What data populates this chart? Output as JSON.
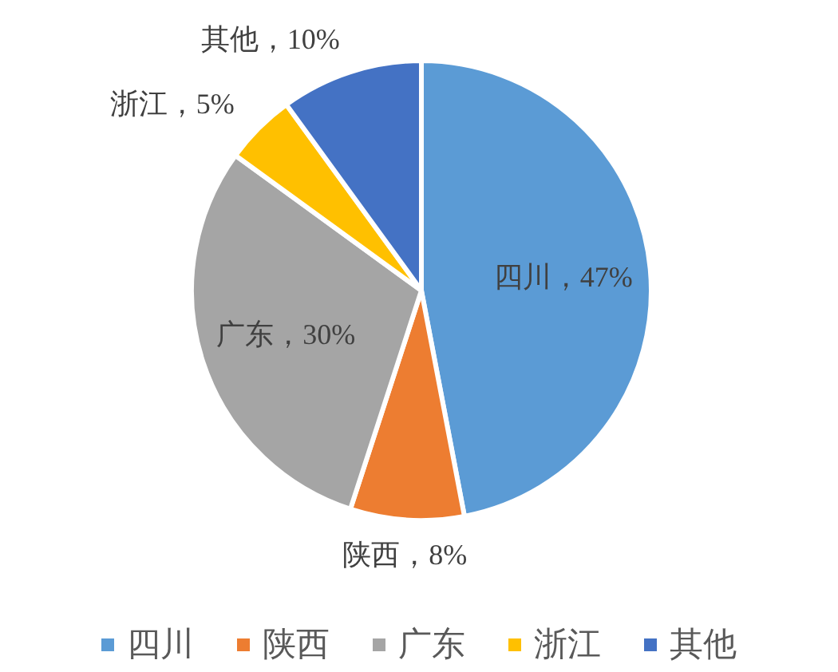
{
  "chart_data": {
    "type": "pie",
    "categories": [
      "四川",
      "陕西",
      "广东",
      "浙江",
      "其他"
    ],
    "values": [
      47,
      8,
      30,
      5,
      10
    ],
    "colors": [
      "#5b9bd5",
      "#ed7d31",
      "#a5a5a5",
      "#ffc000",
      "#4472c4"
    ],
    "value_labels": [
      "四川，47%",
      "陕西，8%",
      "广东，30%",
      "浙江，5%",
      "其他，10%"
    ],
    "legend": "bottom"
  }
}
